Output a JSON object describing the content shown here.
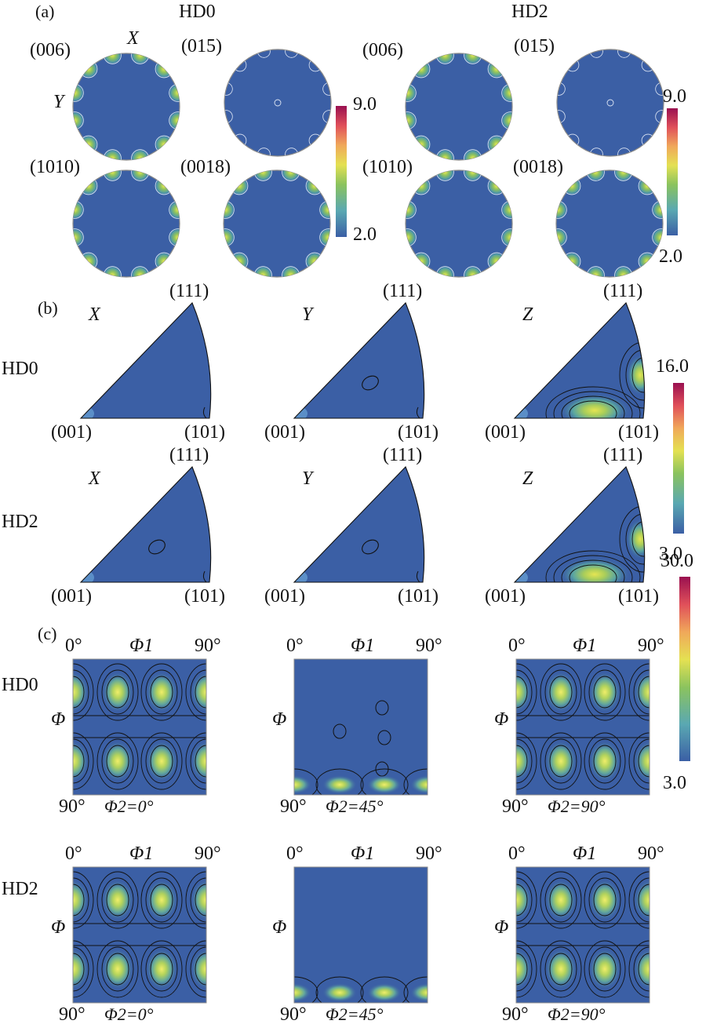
{
  "panel_a": {
    "label": "(a)",
    "groups": [
      {
        "title": "HD0",
        "figures": [
          "(006)",
          "(015)",
          "(1010)",
          "(0018)"
        ]
      },
      {
        "title": "HD2",
        "figures": [
          "(006)",
          "(015)",
          "(1010)",
          "(0018)"
        ]
      }
    ],
    "axis_x": "X",
    "axis_y": "Y",
    "colorbar": {
      "max": "9.0",
      "min": "2.0"
    }
  },
  "panel_b": {
    "label": "(b)",
    "rows": [
      "HD0",
      "HD2"
    ],
    "directions": [
      "X",
      "Y",
      "Z"
    ],
    "corner_top": "(111)",
    "corner_left": "(001)",
    "corner_right": "(101)",
    "colorbar": {
      "max": "16.0",
      "min": "3.0"
    }
  },
  "panel_c": {
    "label": "(c)",
    "rows": [
      "HD0",
      "HD2"
    ],
    "sections": [
      "Φ2=0°",
      "Φ2=45°",
      "Φ2=90°"
    ],
    "phi1_label": "Φ1",
    "phi_label": "Φ",
    "deg0": "0°",
    "deg90": "90°",
    "colorbar": {
      "max": "30.0",
      "min": "3.0"
    }
  },
  "colors": {
    "background_field": "#3b5fa5",
    "contour_line": "#e8eef8",
    "contour_dark": "#111111",
    "peak_green": "#9bc35a",
    "peak_yellow": "#e9e44f"
  }
}
